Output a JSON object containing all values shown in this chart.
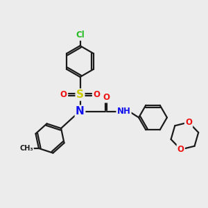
{
  "bg": "#ececec",
  "bc": "#1a1a1a",
  "bw": 1.6,
  "dbg": 0.05,
  "colors": {
    "Cl": "#22bb22",
    "S": "#cccc00",
    "N": "#1111ee",
    "O": "#ee1111",
    "C": "#1a1a1a"
  },
  "fs": 8.5,
  "fs_small": 7.5
}
